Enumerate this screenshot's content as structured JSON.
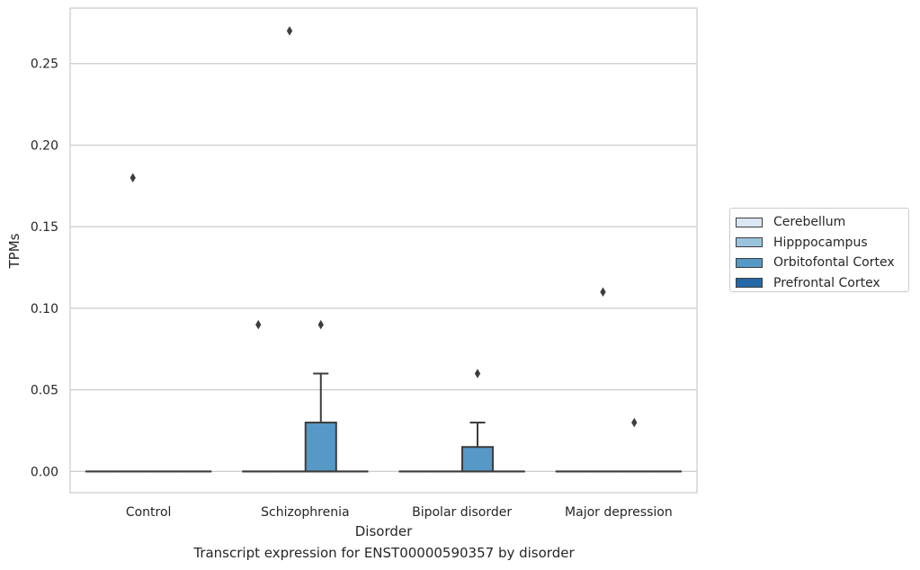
{
  "chart_data": {
    "type": "box",
    "title": "",
    "caption": "Transcript expression for ENST00000590357 by disorder",
    "xlabel": "Disorder",
    "ylabel": "TPMs",
    "ylim": [
      -0.013,
      0.284
    ],
    "yticks": [
      "0.00",
      "0.05",
      "0.10",
      "0.15",
      "0.20",
      "0.25"
    ],
    "grid": "horizontal",
    "legend_position": "right",
    "categories": [
      "Control",
      "Schizophrenia",
      "Bipolar disorder",
      "Major depression"
    ],
    "series": [
      {
        "name": "Cerebellum",
        "color": "#dbe7f3",
        "boxes": [
          {
            "q1": 0,
            "median": 0,
            "q3": 0,
            "whisker_low": 0,
            "whisker_high": 0,
            "outliers": []
          },
          {
            "q1": 0,
            "median": 0,
            "q3": 0,
            "whisker_low": 0,
            "whisker_high": 0,
            "outliers": [
              0.09
            ]
          },
          {
            "q1": 0,
            "median": 0,
            "q3": 0,
            "whisker_low": 0,
            "whisker_high": 0,
            "outliers": []
          },
          {
            "q1": 0,
            "median": 0,
            "q3": 0,
            "whisker_low": 0,
            "whisker_high": 0,
            "outliers": []
          }
        ]
      },
      {
        "name": "Hipppocampus",
        "color": "#9ac4de",
        "boxes": [
          {
            "q1": 0,
            "median": 0,
            "q3": 0,
            "whisker_low": 0,
            "whisker_high": 0,
            "outliers": [
              0.18
            ]
          },
          {
            "q1": 0,
            "median": 0,
            "q3": 0,
            "whisker_low": 0,
            "whisker_high": 0,
            "outliers": [
              0.27
            ]
          },
          {
            "q1": 0,
            "median": 0,
            "q3": 0,
            "whisker_low": 0,
            "whisker_high": 0,
            "outliers": []
          },
          {
            "q1": 0,
            "median": 0,
            "q3": 0,
            "whisker_low": 0,
            "whisker_high": 0,
            "outliers": [
              0.11
            ]
          }
        ]
      },
      {
        "name": "Orbitofontal Cortex",
        "color": "#5698c6",
        "boxes": [
          {
            "q1": 0,
            "median": 0,
            "q3": 0,
            "whisker_low": 0,
            "whisker_high": 0,
            "outliers": []
          },
          {
            "q1": 0,
            "median": 0,
            "q3": 0.03,
            "whisker_low": 0,
            "whisker_high": 0.06,
            "outliers": [
              0.09
            ]
          },
          {
            "q1": 0,
            "median": 0,
            "q3": 0.015,
            "whisker_low": 0,
            "whisker_high": 0.03,
            "outliers": [
              0.06
            ]
          },
          {
            "q1": 0,
            "median": 0,
            "q3": 0,
            "whisker_low": 0,
            "whisker_high": 0,
            "outliers": [
              0.03
            ]
          }
        ]
      },
      {
        "name": "Prefrontal Cortex",
        "color": "#2469a7",
        "boxes": [
          {
            "q1": 0,
            "median": 0,
            "q3": 0,
            "whisker_low": 0,
            "whisker_high": 0,
            "outliers": []
          },
          {
            "q1": 0,
            "median": 0,
            "q3": 0,
            "whisker_low": 0,
            "whisker_high": 0,
            "outliers": []
          },
          {
            "q1": 0,
            "median": 0,
            "q3": 0,
            "whisker_low": 0,
            "whisker_high": 0,
            "outliers": []
          },
          {
            "q1": 0,
            "median": 0,
            "q3": 0,
            "whisker_low": 0,
            "whisker_high": 0,
            "outliers": []
          }
        ]
      }
    ]
  }
}
